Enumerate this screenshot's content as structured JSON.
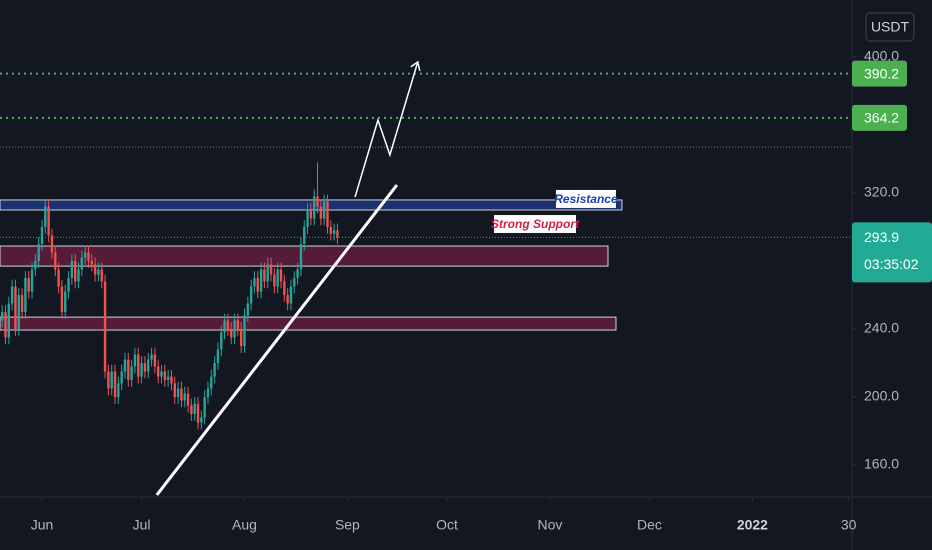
{
  "chart_data": {
    "type": "candlestick",
    "currency": "USDT",
    "x": [
      -12,
      -11,
      -10,
      -9,
      -8,
      -7,
      -6,
      -5,
      -4,
      -3,
      -2,
      -1,
      0,
      1,
      2,
      3,
      4,
      5,
      6,
      7,
      8,
      9,
      10,
      11,
      12,
      13,
      14,
      15,
      16,
      17,
      18,
      19,
      20,
      21,
      22,
      23,
      24,
      25,
      26,
      27,
      28,
      29,
      30,
      31,
      32,
      33,
      34,
      35,
      36,
      37,
      38,
      39,
      40,
      41,
      42,
      43,
      44,
      45,
      46,
      47,
      48,
      49,
      50,
      51,
      52,
      53,
      54,
      55,
      56,
      57,
      58,
      59,
      60,
      61,
      62,
      63,
      64,
      65,
      66,
      67,
      68,
      69,
      70,
      71,
      72,
      73,
      74,
      75,
      76,
      77,
      78,
      79,
      80,
      81,
      82,
      83,
      84,
      85,
      86,
      87,
      88,
      89
    ],
    "open": [
      245,
      250,
      235,
      255,
      265,
      240,
      260,
      250,
      270,
      262,
      275,
      280,
      290,
      300,
      312,
      295,
      285,
      275,
      265,
      250,
      262,
      270,
      280,
      268,
      275,
      282,
      285,
      280,
      278,
      272,
      275,
      268,
      215,
      205,
      215,
      200,
      208,
      215,
      222,
      210,
      218,
      225,
      212,
      220,
      215,
      222,
      225,
      218,
      212,
      215,
      210,
      212,
      208,
      200,
      205,
      198,
      202,
      195,
      190,
      196,
      185,
      188,
      200,
      205,
      212,
      220,
      228,
      238,
      245,
      240,
      235,
      245,
      240,
      230,
      248,
      255,
      265,
      270,
      262,
      275,
      268,
      278,
      272,
      265,
      275,
      268,
      260,
      255,
      265,
      270,
      275,
      290,
      300,
      310,
      305,
      318,
      312,
      305,
      315,
      300,
      296,
      298
    ],
    "high": [
      254,
      254,
      259,
      269,
      269,
      264,
      264,
      274,
      274,
      279,
      284,
      294,
      304,
      316,
      316,
      299,
      289,
      279,
      269,
      266,
      274,
      284,
      284,
      279,
      286,
      289,
      289,
      284,
      282,
      279,
      279,
      272,
      219,
      219,
      219,
      212,
      219,
      226,
      226,
      222,
      229,
      229,
      224,
      224,
      226,
      229,
      229,
      222,
      219,
      219,
      216,
      216,
      212,
      209,
      209,
      206,
      206,
      199,
      200,
      200,
      192,
      204,
      209,
      216,
      224,
      232,
      242,
      249,
      249,
      244,
      249,
      249,
      244,
      252,
      259,
      269,
      274,
      274,
      279,
      279,
      282,
      282,
      276,
      279,
      279,
      272,
      264,
      269,
      274,
      279,
      294,
      304,
      314,
      314,
      322,
      338,
      316,
      319,
      319,
      304,
      302,
      302
    ],
    "low": [
      241,
      231,
      231,
      251,
      236,
      236,
      246,
      246,
      258,
      258,
      271,
      276,
      286,
      296,
      291,
      281,
      271,
      261,
      246,
      246,
      258,
      266,
      264,
      264,
      271,
      278,
      276,
      274,
      268,
      268,
      264,
      211,
      201,
      201,
      196,
      196,
      204,
      211,
      206,
      206,
      214,
      208,
      208,
      211,
      211,
      218,
      214,
      208,
      208,
      206,
      206,
      204,
      196,
      196,
      194,
      194,
      191,
      186,
      186,
      181,
      181,
      184,
      196,
      201,
      208,
      216,
      224,
      234,
      236,
      231,
      231,
      236,
      226,
      226,
      244,
      251,
      261,
      258,
      258,
      264,
      264,
      268,
      261,
      261,
      264,
      256,
      251,
      251,
      261,
      266,
      271,
      286,
      296,
      301,
      301,
      308,
      301,
      301,
      296,
      292,
      292,
      290
    ],
    "close": [
      250,
      235,
      255,
      265,
      240,
      260,
      250,
      270,
      262,
      275,
      280,
      290,
      300,
      312,
      295,
      285,
      275,
      265,
      250,
      262,
      270,
      280,
      268,
      275,
      282,
      285,
      280,
      278,
      272,
      275,
      268,
      215,
      205,
      215,
      200,
      208,
      215,
      222,
      210,
      218,
      225,
      212,
      220,
      215,
      222,
      225,
      218,
      212,
      215,
      210,
      212,
      208,
      200,
      205,
      198,
      202,
      195,
      190,
      196,
      185,
      188,
      200,
      205,
      212,
      220,
      228,
      238,
      245,
      240,
      235,
      245,
      240,
      230,
      248,
      255,
      265,
      270,
      262,
      275,
      268,
      278,
      272,
      265,
      275,
      268,
      260,
      255,
      265,
      270,
      275,
      290,
      300,
      310,
      305,
      318,
      312,
      305,
      315,
      300,
      296,
      298,
      293.9
    ],
    "up_color": "#26a69a",
    "down_color": "#ef5350",
    "xlim": [
      -12.65,
      244
    ],
    "ylim": [
      141.2,
      433.5
    ],
    "xticks": [
      {
        "value": 0,
        "label": "Jun"
      },
      {
        "value": 30,
        "label": "Jul"
      },
      {
        "value": 61,
        "label": "Aug"
      },
      {
        "value": 92,
        "label": "Sep"
      },
      {
        "value": 122,
        "label": "Oct"
      },
      {
        "value": 153,
        "label": "Nov"
      },
      {
        "value": 183,
        "label": "Dec"
      },
      {
        "value": 214,
        "label": "2022"
      },
      {
        "value": 243,
        "label": "30"
      }
    ],
    "yticks": [
      {
        "value": 400,
        "label": "400.0"
      },
      {
        "value": 320,
        "label": "320.0"
      },
      {
        "value": 240,
        "label": "240.0"
      },
      {
        "value": 200,
        "label": "200.0"
      },
      {
        "value": 160,
        "label": "160.0"
      }
    ],
    "levels": [
      {
        "value": 390.2,
        "label": "390.2",
        "color": "#4caf50"
      },
      {
        "value": 364.2,
        "label": "364.2",
        "color": "#4caf50"
      }
    ],
    "gray_level": 347,
    "last_price": {
      "value": 293.9,
      "label": "293.9",
      "countdown": "03:35:02",
      "color": "#22ab94"
    },
    "zones": [
      {
        "x": [
          -12.65,
          174.7
        ],
        "y": [
          310,
          315.9
        ],
        "color": "#1e3a8a",
        "label": "Resistance",
        "label_color": "#1e40af"
      },
      {
        "x": [
          -12.65,
          170.5
        ],
        "y": [
          277,
          288.8
        ],
        "color": "#6b1f3f",
        "label": "Strong Support",
        "label_color": "#d61e4a"
      },
      {
        "x": [
          -12.65,
          172.9
        ],
        "y": [
          239.4,
          247
        ],
        "color": "#6b1f3f"
      }
    ],
    "trend_line": {
      "x": [
        34.6,
        106.9
      ],
      "y": [
        142.4,
        324.7
      ]
    },
    "arrow": {
      "x": [
        94.3,
        101.2,
        104.8,
        113.2
      ],
      "y": [
        317.6,
        362.9,
        342.4,
        397.1
      ]
    }
  }
}
